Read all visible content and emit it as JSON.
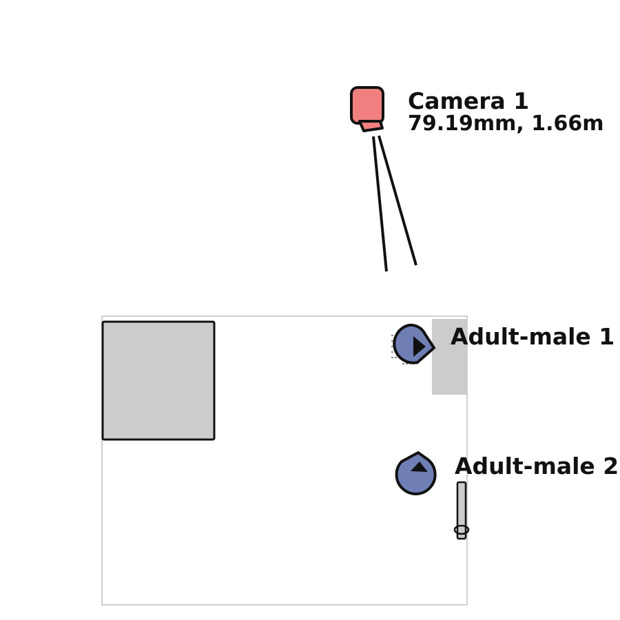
{
  "camera": {
    "name": "Camera 1",
    "specs": "79.19mm, 1.66m",
    "color": "#f08080"
  },
  "people": [
    {
      "label": "Adult-male 1",
      "color": "#6f7fb5"
    },
    {
      "label": "Adult-male 2",
      "color": "#6f7fb5"
    }
  ],
  "colors": {
    "furniture": "#cccccc",
    "outline": "#111111",
    "room_border": "#b0b0b0"
  }
}
